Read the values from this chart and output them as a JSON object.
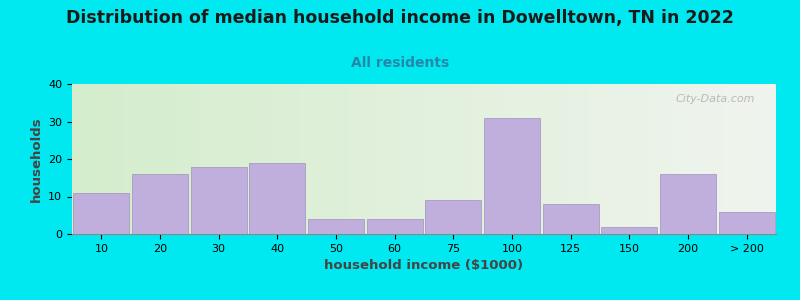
{
  "title": "Distribution of median household income in Dowelltown, TN in 2022",
  "subtitle": "All residents",
  "xlabel": "household income ($1000)",
  "ylabel": "households",
  "title_fontsize": 12.5,
  "subtitle_fontsize": 10,
  "label_fontsize": 9.5,
  "tick_fontsize": 8,
  "bar_color": "#c0aedd",
  "bar_edgecolor": "#a090c0",
  "background_outer": "#00e8f0",
  "ylim": [
    0,
    40
  ],
  "yticks": [
    0,
    10,
    20,
    30,
    40
  ],
  "categories": [
    "10",
    "20",
    "30",
    "40",
    "50",
    "60",
    "75",
    "100",
    "125",
    "150",
    "200",
    "> 200"
  ],
  "values": [
    11,
    16,
    18,
    19,
    4,
    4,
    9,
    31,
    8,
    2,
    16,
    6
  ],
  "watermark": "City-Data.com",
  "grid_color": "#dddddd",
  "bg_left_color": "#d4edcc",
  "bg_right_color": "#f0f4ee"
}
